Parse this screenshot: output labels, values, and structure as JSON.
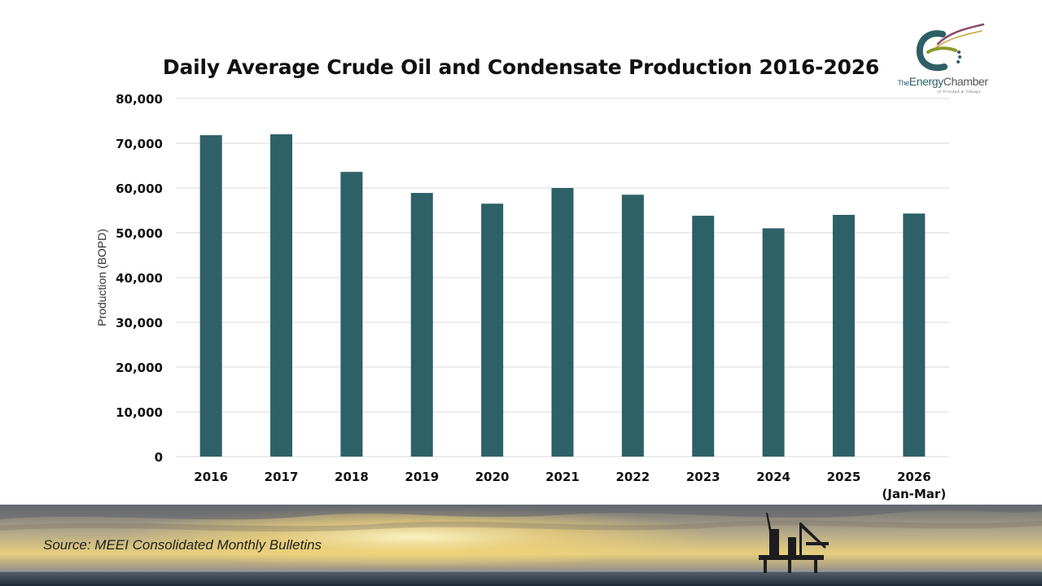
{
  "chart_data": {
    "type": "bar",
    "title": "Daily Average Crude Oil and Condensate Production 2016-2026",
    "ylabel": "Production (BOPD)",
    "xlabel": "",
    "categories": [
      "2016",
      "2017",
      "2018",
      "2019",
      "2020",
      "2021",
      "2022",
      "2023",
      "2024",
      "2025",
      "2026\n(Jan-Mar)"
    ],
    "values": [
      71800,
      72000,
      63600,
      58900,
      56500,
      60000,
      58500,
      53800,
      51000,
      54000,
      54300
    ],
    "ylim": [
      0,
      80000
    ],
    "yticks": [
      "0",
      "10,000",
      "20,000",
      "30,000",
      "40,000",
      "50,000",
      "60,000",
      "70,000",
      "80,000"
    ],
    "grid": true,
    "legend": "none",
    "bar_color": "#2d6167"
  },
  "logo": {
    "name_part1": "The",
    "name_part2": "Energy",
    "name_part3": "Chamber",
    "subtitle": "of Trinidad & Tobago"
  },
  "footer": {
    "source": "Source: MEEI Consolidated Monthly Bulletins"
  }
}
